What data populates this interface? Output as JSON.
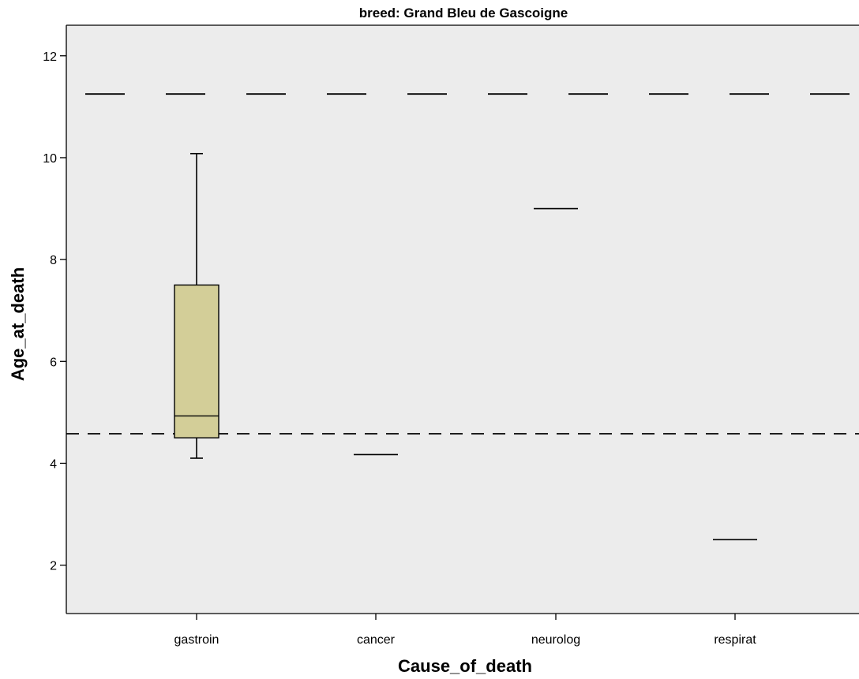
{
  "chart_data": {
    "type": "boxplot",
    "title": "breed: Grand Bleu de Gascoigne",
    "xlabel": "Cause_of_death",
    "ylabel": "Age_at_death",
    "categories": [
      "gastroin",
      "cancer",
      "neurolog",
      "respirat"
    ],
    "boxes": [
      {
        "category": "gastroin",
        "min": 4.1,
        "q1": 4.5,
        "median": 4.93,
        "q3": 7.5,
        "max": 10.08
      },
      {
        "category": "cancer",
        "min": 4.17,
        "q1": 4.17,
        "median": 4.17,
        "q3": 4.17,
        "max": 4.17
      },
      {
        "category": "neurolog",
        "min": 9.0,
        "q1": 9.0,
        "median": 9.0,
        "q3": 9.0,
        "max": 9.0
      },
      {
        "category": "respirat",
        "min": 2.5,
        "q1": 2.5,
        "median": 2.5,
        "q3": 2.5,
        "max": 2.5
      }
    ],
    "reference_lines": [
      {
        "value": 11.25,
        "style": "long-dash"
      },
      {
        "value": 4.58,
        "style": "short-dash"
      }
    ],
    "yticks": [
      2,
      4,
      6,
      8,
      10,
      12
    ],
    "ylim": [
      1.05,
      12.6
    ],
    "grid": false,
    "colors": {
      "plot_background": "#ececec",
      "box_fill": "#d3ce98",
      "line": "#000000"
    }
  }
}
